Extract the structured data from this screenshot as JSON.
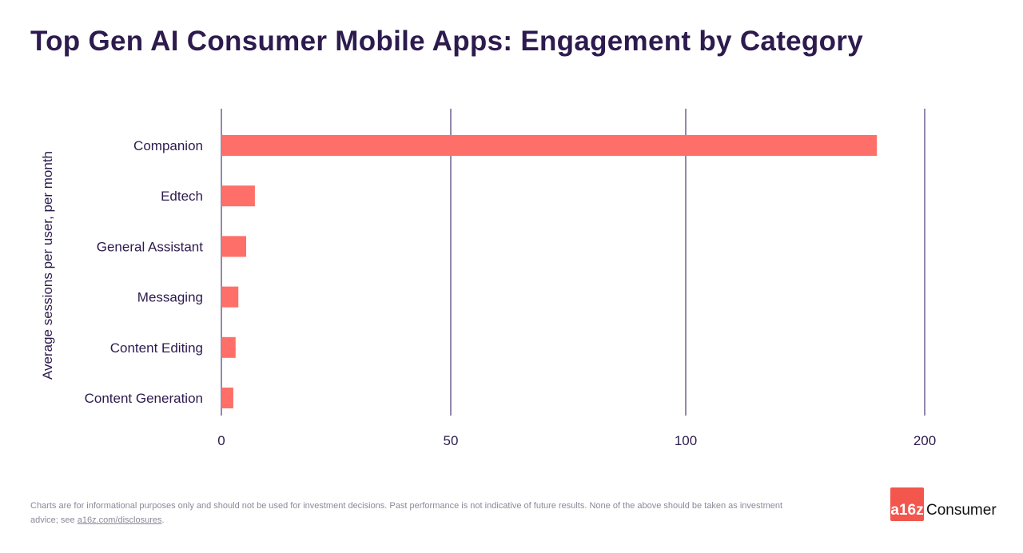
{
  "chart_data": {
    "type": "bar",
    "orientation": "horizontal",
    "title": "Top Gen AI Consumer Mobile Apps: Engagement by Category",
    "ylabel": "Average sessions per user, per month",
    "xlabel": "",
    "categories": [
      "Companion",
      "Edtech",
      "General Assistant",
      "Messaging",
      "Content Editing",
      "Content Generation"
    ],
    "values": [
      180,
      7.3,
      5.4,
      3.7,
      3.1,
      2.6
    ],
    "x_ticks": [
      0,
      50,
      100,
      200
    ],
    "xlim": [
      0,
      200
    ],
    "grid": true,
    "bar_color": "#ff6f69",
    "grid_color": "#5a4a7a"
  },
  "footer": {
    "disclaimer": "Charts are for informational purposes only and should not be used for investment decisions. Past performance is not indicative of future results. None of the above should be taken as investment advice; see ",
    "link": "a16z.com/disclosures",
    "end": "."
  },
  "logo": {
    "mark": "a16z",
    "text": "Consumer"
  }
}
